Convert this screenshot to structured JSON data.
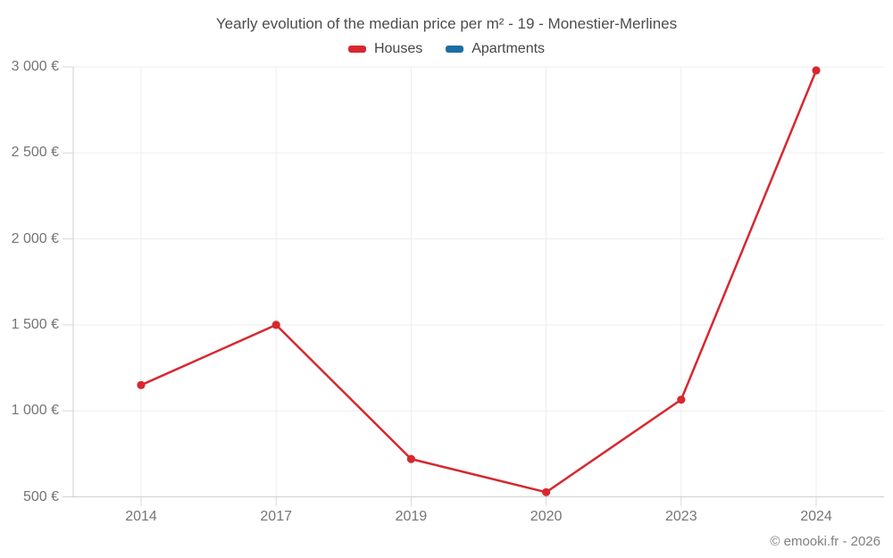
{
  "header": {
    "title": "Yearly evolution of the median price per m² - 19 - Monestier-Merlines"
  },
  "footer": {
    "credit": "© emooki.fr - 2026"
  },
  "colors": {
    "houses": "#d7282f",
    "apartments": "#1c6ea4",
    "grid": "#ededed",
    "tick": "#d8d8d8",
    "axis": "#cfcfcf"
  },
  "chart_data": {
    "type": "line",
    "title": "Yearly evolution of the median price per m² - 19 - Monestier-Merlines",
    "categories": [
      "2014",
      "2017",
      "2019",
      "2020",
      "2023",
      "2024"
    ],
    "series": [
      {
        "name": "Houses",
        "color": "#d7282f",
        "values": [
          1150,
          1500,
          720,
          527,
          1065,
          2980
        ]
      },
      {
        "name": "Apartments",
        "color": "#1c6ea4",
        "values": []
      }
    ],
    "xlabel": "",
    "ylabel": "",
    "ylim": [
      500,
      3000
    ],
    "yticks": [
      {
        "value": 500,
        "label": "500 €"
      },
      {
        "value": 1000,
        "label": "1 000 €"
      },
      {
        "value": 1500,
        "label": "1 500 €"
      },
      {
        "value": 2000,
        "label": "2 000 €"
      },
      {
        "value": 2500,
        "label": "2 500 €"
      },
      {
        "value": 3000,
        "label": "3 000 €"
      }
    ],
    "grid": true,
    "legend_position": "top",
    "currency": "€"
  }
}
